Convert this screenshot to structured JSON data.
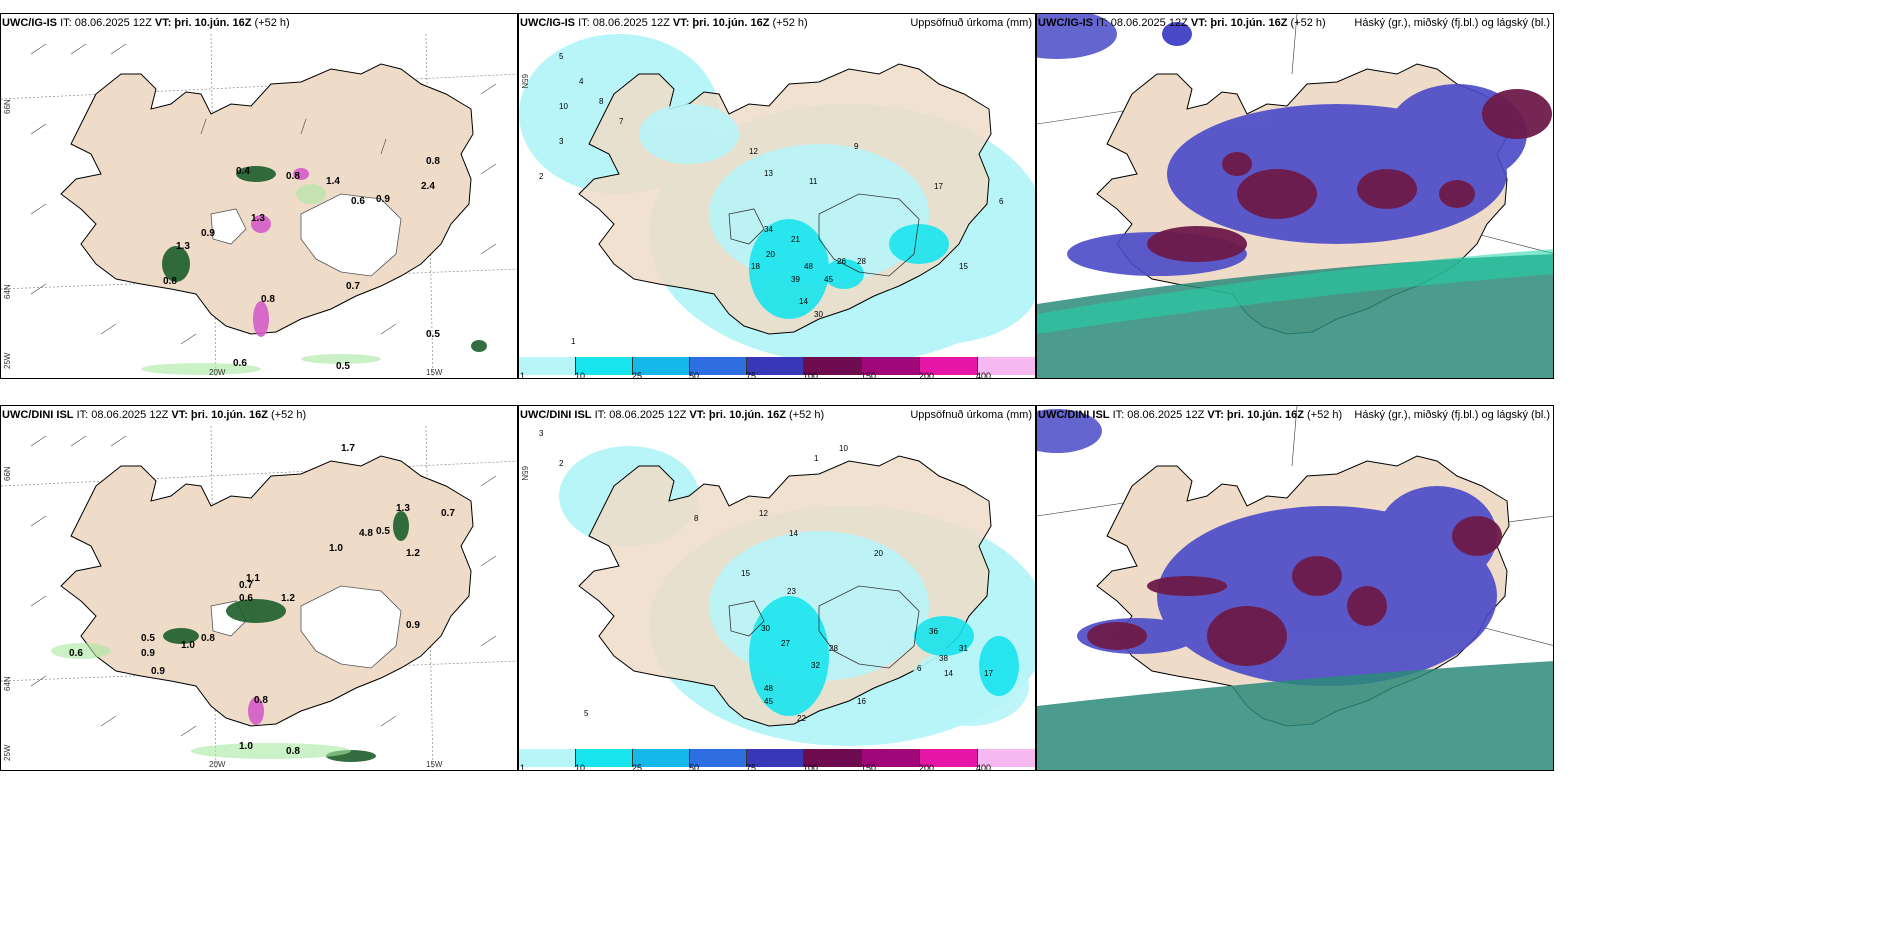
{
  "panels": {
    "p1": {
      "model": "UWC/IG-IS",
      "it": "IT: 08.06.2025 12Z",
      "vt_label": "VT:",
      "vt": "þri. 10.jún. 16Z",
      "lead": "(+52 h)",
      "title_right": ""
    },
    "p2": {
      "model": "UWC/IG-IS",
      "it": "IT: 08.06.2025 12Z",
      "vt_label": "VT:",
      "vt": "þri. 10.jún. 16Z",
      "lead": "(+52 h)",
      "title_right": "Uppsöfnuð úrkoma (mm)"
    },
    "p3": {
      "model": "UWC/IG-IS",
      "it": "IT: 08.06.2025 12Z",
      "vt_label": "VT:",
      "vt": "þri. 10.jún. 16Z",
      "lead": "(+52 h)",
      "title_right": "Háský (gr.), miðský (fj.bl.) og lágský (bl.)"
    },
    "p4": {
      "model": "UWC/DINI ISL",
      "it": "IT: 08.06.2025 12Z",
      "vt_label": "VT:",
      "vt": "þri. 10.jún. 16Z",
      "lead": "(+52 h)",
      "title_right": ""
    },
    "p5": {
      "model": "UWC/DINI ISL",
      "it": "IT: 08.06.2025 12Z",
      "vt_label": "VT:",
      "vt": "þri. 10.jún. 16Z",
      "lead": "(+52 h)",
      "title_right": "Uppsöfnuð úrkoma (mm)"
    },
    "p6": {
      "model": "UWC/DINI ISL",
      "it": "IT: 08.06.2025 12Z",
      "vt_label": "VT:",
      "vt": "þri. 10.jún. 16Z",
      "lead": "(+52 h)",
      "title_right": "Háský (gr.), miðský (fj.bl.) og lágský (bl.)"
    }
  },
  "axes": {
    "lon_20": "20W",
    "lon_15": "15W",
    "lat_66": "66N",
    "lat_64": "64N",
    "lat_65": "65N",
    "lon_25": "25W"
  },
  "colorbar": {
    "ticks": [
      "1",
      "10",
      "25",
      "50",
      "75",
      "100",
      "150",
      "200",
      "400"
    ],
    "colors": [
      "#b8f5f8",
      "#18e4ee",
      "#15b8e8",
      "#2f6ee0",
      "#3737b8",
      "#6d0b4e",
      "#a0087a",
      "#e617a6",
      "#f5b8f0"
    ]
  },
  "colors": {
    "land": "#efdcc8",
    "ice": "#ffffff",
    "precip_light": "#b8f5f8",
    "precip_mid": "#18e4ee",
    "high_cloud": "#6e1a4a",
    "mid_cloud": "#4a4ac8",
    "low_cloud": "#2b8a7a",
    "convective_green": "#1d5e2b"
  },
  "panel1_labels": [
    "0.4",
    "0.8",
    "1.4",
    "0.6",
    "0.9",
    "0.8",
    "0.9",
    "1.3",
    "0.8",
    "0.7",
    "0.8",
    "0.5",
    "0.6",
    "0.5",
    "2.4",
    "1.3"
  ],
  "panel2_labels": [
    "5",
    "4",
    "8",
    "10",
    "7",
    "3",
    "12",
    "13",
    "11",
    "34",
    "21",
    "20",
    "48",
    "39",
    "45",
    "18",
    "26",
    "30",
    "14",
    "9",
    "17",
    "15",
    "28",
    "2",
    "6",
    "1"
  ],
  "panel4_labels": [
    "1.7",
    "1.3",
    "0.7",
    "4.8",
    "0.5",
    "1.0",
    "1.1",
    "0.7",
    "0.6",
    "1.2",
    "0.5",
    "0.8",
    "0.9",
    "1.0",
    "0.6",
    "0.9",
    "0.8",
    "0.9",
    "1.0",
    "0.8",
    "1.2"
  ],
  "panel5_labels": [
    "3",
    "2",
    "10",
    "12",
    "14",
    "20",
    "15",
    "23",
    "30",
    "27",
    "28",
    "32",
    "48",
    "45",
    "22",
    "16",
    "14",
    "17",
    "36",
    "38",
    "31",
    "6",
    "1",
    "5",
    "8"
  ]
}
